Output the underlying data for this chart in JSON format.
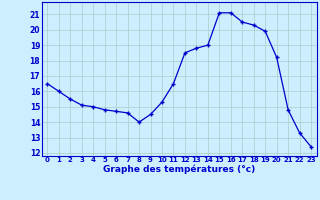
{
  "hours": [
    0,
    1,
    2,
    3,
    4,
    5,
    6,
    7,
    8,
    9,
    10,
    11,
    12,
    13,
    14,
    15,
    16,
    17,
    18,
    19,
    20,
    21,
    22,
    23
  ],
  "temps": [
    16.5,
    16.0,
    15.5,
    15.1,
    15.0,
    14.8,
    14.7,
    14.6,
    14.0,
    14.5,
    15.3,
    16.5,
    18.5,
    18.8,
    19.0,
    21.1,
    21.1,
    20.5,
    20.3,
    19.9,
    18.2,
    14.8,
    13.3,
    12.4
  ],
  "line_color": "#0000cc",
  "marker": "+",
  "bg_color": "#cceeff",
  "grid_color": "#aacccc",
  "ylabel_ticks": [
    12,
    13,
    14,
    15,
    16,
    17,
    18,
    19,
    20,
    21
  ],
  "xlabel": "Graphe des températures (°c)",
  "xlim": [
    -0.5,
    23.5
  ],
  "ylim": [
    11.8,
    21.8
  ],
  "tick_color": "#0000cc",
  "axis_label_color": "#0000cc"
}
